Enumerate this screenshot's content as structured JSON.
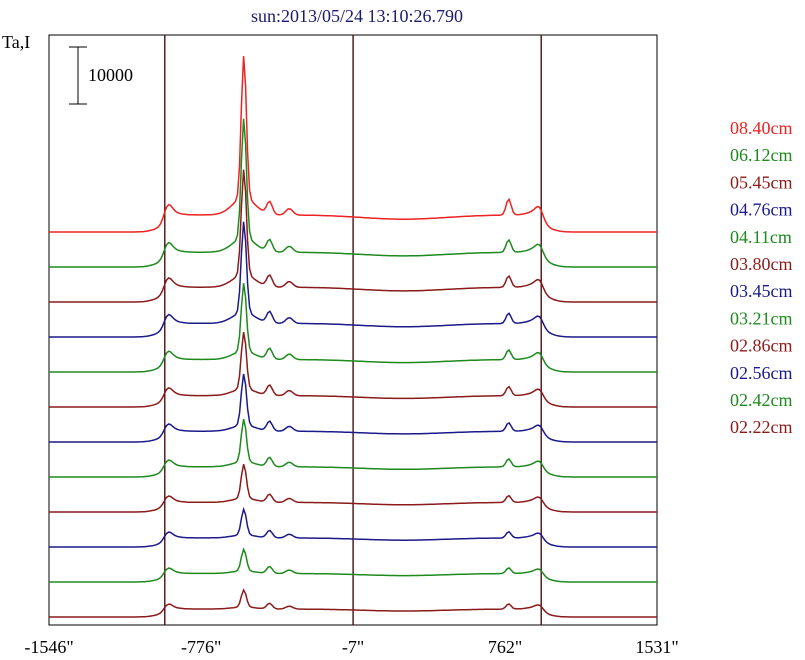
{
  "chart_data": {
    "type": "line",
    "title": "sun:2013/05/24 13:10:26.790",
    "ylabel": "Ta,I",
    "scale_bar_label": "10000",
    "x_ticks": [
      "-1546\"",
      "-776\"",
      "-7\"",
      "762\"",
      "1531\""
    ],
    "xlim": [
      -1546,
      1531
    ],
    "vertical_markers": [
      -960,
      -7,
      945
    ],
    "grid": false,
    "legend_position": "right",
    "series": [
      {
        "name": "08.40cm",
        "color": "#ee2222",
        "baseline": 0,
        "peak": 25000,
        "limb": 4600,
        "edge": 3200,
        "center": 3000,
        "secondary": 2200,
        "right_peak": 2800
      },
      {
        "name": "06.12cm",
        "color": "#1e8a1e",
        "baseline": -1,
        "peak": 21000,
        "limb": 4000,
        "edge": 3200,
        "center": 2600,
        "secondary": 2100,
        "right_peak": 2200
      },
      {
        "name": "05.45cm",
        "color": "#8b1a1a",
        "baseline": -2,
        "peak": 18500,
        "limb": 3800,
        "edge": 3200,
        "center": 2600,
        "secondary": 2000,
        "right_peak": 2000
      },
      {
        "name": "04.76cm",
        "color": "#1a1a8b",
        "baseline": -3,
        "peak": 16000,
        "limb": 3600,
        "edge": 3000,
        "center": 2400,
        "secondary": 2000,
        "right_peak": 1800
      },
      {
        "name": "04.11cm",
        "color": "#1e8a1e",
        "baseline": -4,
        "peak": 12000,
        "limb": 3400,
        "edge": 2800,
        "center": 2200,
        "secondary": 1900,
        "right_peak": 1700
      },
      {
        "name": "03.80cm",
        "color": "#8b1a1a",
        "baseline": -5,
        "peak": 10000,
        "limb": 3200,
        "edge": 2600,
        "center": 2000,
        "secondary": 1800,
        "right_peak": 1600
      },
      {
        "name": "03.45cm",
        "color": "#1a1a8b",
        "baseline": -6,
        "peak": 9000,
        "limb": 3000,
        "edge": 2400,
        "center": 1900,
        "secondary": 1700,
        "right_peak": 1500
      },
      {
        "name": "03.21cm",
        "color": "#1e8a1e",
        "baseline": -7,
        "peak": 7500,
        "limb": 2800,
        "edge": 2300,
        "center": 1800,
        "secondary": 1600,
        "right_peak": 1400
      },
      {
        "name": "02.86cm",
        "color": "#8b1a1a",
        "baseline": -8,
        "peak": 6000,
        "limb": 2600,
        "edge": 2200,
        "center": 1700,
        "secondary": 1400,
        "right_peak": 1200
      },
      {
        "name": "02.56cm",
        "color": "#1a1a8b",
        "baseline": -9,
        "peak": 4500,
        "limb": 2400,
        "edge": 2000,
        "center": 1600,
        "secondary": 1300,
        "right_peak": 1100
      },
      {
        "name": "02.42cm",
        "color": "#1e8a1e",
        "baseline": -10,
        "peak": 3800,
        "limb": 2200,
        "edge": 1900,
        "center": 1500,
        "secondary": 1200,
        "right_peak": 1000
      },
      {
        "name": "02.22cm",
        "color": "#8b1a1a",
        "baseline": -11,
        "peak": 3000,
        "limb": 2000,
        "edge": 1800,
        "center": 1400,
        "secondary": 1000,
        "right_peak": 900
      }
    ]
  }
}
